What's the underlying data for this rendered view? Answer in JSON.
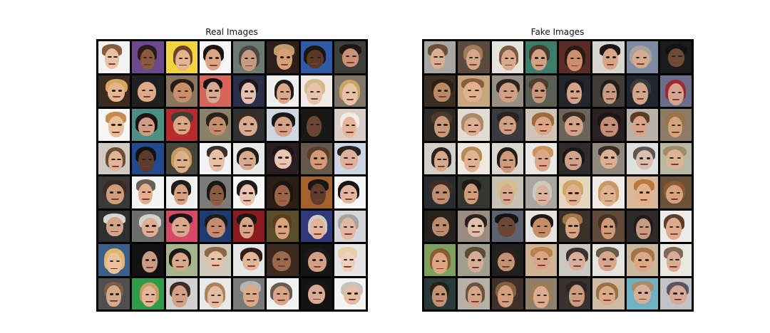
{
  "panels": [
    {
      "key": "real",
      "title": "Real Images",
      "tiles": [
        {
          "bg": "#f3f3f3",
          "skin": "#e7c2a4",
          "hair": "#8a5b3a"
        },
        {
          "bg": "#6a4a8d",
          "skin": "#8b5a3e",
          "hair": "#2b1b16"
        },
        {
          "bg": "#f1d43f",
          "skin": "#e4b48f",
          "hair": "#6f4328"
        },
        {
          "bg": "#f6f6f6",
          "skin": "#d9a585",
          "hair": "#1b1512"
        },
        {
          "bg": "#6c7a72",
          "skin": "#c79b80",
          "hair": "#4b4742"
        },
        {
          "bg": "#2d201b",
          "skin": "#d7a076",
          "hair": "#bf9d6d"
        },
        {
          "bg": "#2f5aa8",
          "skin": "#5a3827",
          "hair": "#1b1614"
        },
        {
          "bg": "#3d4038",
          "skin": "#c99276",
          "hair": "#1d1716"
        },
        {
          "bg": "#3a2a1f",
          "skin": "#e4b590",
          "hair": "#d7a65f"
        },
        {
          "bg": "#202020",
          "skin": "#dcaa86",
          "hair": "#1d1d24"
        },
        {
          "bg": "#8a7560",
          "skin": "#c88f6b",
          "hair": "#2b1d16"
        },
        {
          "bg": "#d6665c",
          "skin": "#d4aa93",
          "hair": "#171313"
        },
        {
          "bg": "#2a2e46",
          "skin": "#e2bfb0",
          "hair": "#1a151a"
        },
        {
          "bg": "#f0f0f0",
          "skin": "#dca88a",
          "hair": "#231b18"
        },
        {
          "bg": "#f0ece5",
          "skin": "#e6c4ac",
          "hair": "#d5b98a"
        },
        {
          "bg": "#80776a",
          "skin": "#e7c2a7",
          "hair": "#c8a469"
        },
        {
          "bg": "#f7f7f7",
          "skin": "#e9c09a",
          "hair": "#c48c52"
        },
        {
          "bg": "#4c8f83",
          "skin": "#d09c82",
          "hair": "#1c1414"
        },
        {
          "bg": "#b52c2c",
          "skin": "#d9a686",
          "hair": "#433a36"
        },
        {
          "bg": "#8b8068",
          "skin": "#c28e6c",
          "hair": "#2b201a"
        },
        {
          "bg": "#2f3131",
          "skin": "#d7ab90",
          "hair": "#3a2c22"
        },
        {
          "bg": "#cfd8e0",
          "skin": "#d3a289",
          "hair": "#1b1718"
        },
        {
          "bg": "#171717",
          "skin": "#6b4634",
          "hair": "#1c1512"
        },
        {
          "bg": "#d9cfc8",
          "skin": "#e3b69d",
          "hair": "#f0ebe4"
        },
        {
          "bg": "#cfcbc4",
          "skin": "#e0b598",
          "hair": "#6b4d35"
        },
        {
          "bg": "#224a8e",
          "skin": "#5c3b2c",
          "hair": "#111111"
        },
        {
          "bg": "#47443c",
          "skin": "#dcb08d",
          "hair": "#c49a5d"
        },
        {
          "bg": "#f2f2f2",
          "skin": "#e6c1a8",
          "hair": "#3a2e28"
        },
        {
          "bg": "#e9e9e9",
          "skin": "#d7a98e",
          "hair": "#1d1a1a"
        },
        {
          "bg": "#2a1e21",
          "skin": "#e8c6b2",
          "hair": "#1a1418"
        },
        {
          "bg": "#66574b",
          "skin": "#d29a76",
          "hair": "#5a3c28"
        },
        {
          "bg": "#cad6e6",
          "skin": "#deb29a",
          "hair": "#2a2220"
        },
        {
          "bg": "#3a3838",
          "skin": "#cf9d7e",
          "hair": "#3b2b22"
        },
        {
          "bg": "#f4f4f4",
          "skin": "#e2b08f",
          "hair": "#6a5f58"
        },
        {
          "bg": "#f0f0f0",
          "skin": "#d4a383",
          "hair": "#1f1b19"
        },
        {
          "bg": "#7b7c78",
          "skin": "#8c5c43",
          "hair": "#1b1513"
        },
        {
          "bg": "#f7f7f7",
          "skin": "#e7c4b1",
          "hair": "#1d1819"
        },
        {
          "bg": "#2c1d16",
          "skin": "#9a6547",
          "hair": "#1d1512"
        },
        {
          "bg": "#a2612e",
          "skin": "#5f3c2b",
          "hair": "#1b1613"
        },
        {
          "bg": "#f6f6f6",
          "skin": "#e2b7a0",
          "hair": "#181415"
        },
        {
          "bg": "#2f2f2f",
          "skin": "#d2a488",
          "hair": "#d8d6d2"
        },
        {
          "bg": "#6c6c6c",
          "skin": "#ddae93",
          "hair": "#d3d1cd"
        },
        {
          "bg": "#d34966",
          "skin": "#d9a78c",
          "hair": "#1a1416"
        },
        {
          "bg": "#1d3b6f",
          "skin": "#c48e6e",
          "hair": "#1e1a19"
        },
        {
          "bg": "#8b1a1e",
          "skin": "#d6a586",
          "hair": "#1a1717"
        },
        {
          "bg": "#5a4d2a",
          "skin": "#d8a37c",
          "hair": "#5a3e22"
        },
        {
          "bg": "#2e3a7a",
          "skin": "#e2b49c",
          "hair": "#cfc9c1"
        },
        {
          "bg": "#d4d6da",
          "skin": "#e1b8a1",
          "hair": "#a7a39d"
        },
        {
          "bg": "#3b5f86",
          "skin": "#e7c09e",
          "hair": "#e2b56a"
        },
        {
          "bg": "#111111",
          "skin": "#c79b84",
          "hair": "#141014"
        },
        {
          "bg": "#a5b58c",
          "skin": "#d7a88a",
          "hair": "#1d1a16"
        },
        {
          "bg": "#cfc8bd",
          "skin": "#e6c2a7",
          "hair": "#8b6848"
        },
        {
          "bg": "#e6e6e6",
          "skin": "#e3b597",
          "hair": "#2e1e16"
        },
        {
          "bg": "#3a2a20",
          "skin": "#9a6a4c",
          "hair": "#3e281b"
        },
        {
          "bg": "#151515",
          "skin": "#d0a187",
          "hair": "#1e1917"
        },
        {
          "bg": "#e5e5e5",
          "skin": "#efcfbc",
          "hair": "#e6cfa5"
        },
        {
          "bg": "#4f4f4f",
          "skin": "#d5a889",
          "hair": "#7d5d42"
        },
        {
          "bg": "#2f9a4a",
          "skin": "#e3b696",
          "hair": "#c99c66"
        },
        {
          "bg": "#d1d1d1",
          "skin": "#d2a187",
          "hair": "#3a2d25"
        },
        {
          "bg": "#e9e9e9",
          "skin": "#e4bda5",
          "hair": "#ad8459"
        },
        {
          "bg": "#7a7a7a",
          "skin": "#dba889",
          "hair": "#b9b3ad"
        },
        {
          "bg": "#f1f1f1",
          "skin": "#d8a587",
          "hair": "#6a5b52"
        },
        {
          "bg": "#121212",
          "skin": "#d9aa94",
          "hair": "#1a1514"
        },
        {
          "bg": "#f3f3f3",
          "skin": "#e4bda6",
          "hair": "#c8c2ba"
        }
      ]
    },
    {
      "key": "fake",
      "title": "Fake Images",
      "tiles": [
        {
          "bg": "#a9a7a2",
          "skin": "#d9b096",
          "hair": "#6b4f3a"
        },
        {
          "bg": "#5b4a3e",
          "skin": "#d4a688",
          "hair": "#a07c5b"
        },
        {
          "bg": "#e6e2dc",
          "skin": "#d9a98b",
          "hair": "#7a5a40"
        },
        {
          "bg": "#3c7d6b",
          "skin": "#d3a084",
          "hair": "#49382c"
        },
        {
          "bg": "#5b2b25",
          "skin": "#c98f6f",
          "hair": "#2a1a16"
        },
        {
          "bg": "#d8d5d1",
          "skin": "#d9a588",
          "hair": "#1c1616"
        },
        {
          "bg": "#7d8aa1",
          "skin": "#d6a991",
          "hair": "#a9a29a"
        },
        {
          "bg": "#1b1b1b",
          "skin": "#6e4a38",
          "hair": "#141111"
        },
        {
          "bg": "#3a2e22",
          "skin": "#b88a66",
          "hair": "#2c2016"
        },
        {
          "bg": "#c7a780",
          "skin": "#e1b190",
          "hair": "#8a5e3c"
        },
        {
          "bg": "#9a8f85",
          "skin": "#cfa084",
          "hair": "#2b2320"
        },
        {
          "bg": "#5a5f54",
          "skin": "#c69879",
          "hair": "#4f3d30"
        },
        {
          "bg": "#24262b",
          "skin": "#d2a489",
          "hair": "#1b1718"
        },
        {
          "bg": "#3f3c38",
          "skin": "#c49a80",
          "hair": "#211c19"
        },
        {
          "bg": "#1f2730",
          "skin": "#d3a68c",
          "hair": "#3a3a3a"
        },
        {
          "bg": "#6b6e8a",
          "skin": "#d7a48d",
          "hair": "#9c2a30"
        },
        {
          "bg": "#2f2c27",
          "skin": "#c89a7a",
          "hair": "#4a3a2c"
        },
        {
          "bg": "#e2dbd2",
          "skin": "#dcae93",
          "hair": "#aa8a6a"
        },
        {
          "bg": "#3a3a3d",
          "skin": "#cf9f84",
          "hair": "#2b2322"
        },
        {
          "bg": "#cfc4b5",
          "skin": "#dba784",
          "hair": "#9b6a3f"
        },
        {
          "bg": "#6b6559",
          "skin": "#d2a386",
          "hair": "#3a2f27"
        },
        {
          "bg": "#2a2021",
          "skin": "#c48e76",
          "hair": "#1d1517"
        },
        {
          "bg": "#b8b2a9",
          "skin": "#d7a488",
          "hair": "#5a3c29"
        },
        {
          "bg": "#8c7b66",
          "skin": "#d5a47f",
          "hair": "#9b7444"
        },
        {
          "bg": "#d3d0cb",
          "skin": "#d9a98c",
          "hair": "#2a221f"
        },
        {
          "bg": "#f0e9df",
          "skin": "#e0b493",
          "hair": "#b68b58"
        },
        {
          "bg": "#dad6d0",
          "skin": "#cf9a79",
          "hair": "#211b18"
        },
        {
          "bg": "#eae8e4",
          "skin": "#dba98a",
          "hair": "#c99461"
        },
        {
          "bg": "#2f2d2b",
          "skin": "#cfa38a",
          "hair": "#1a1616"
        },
        {
          "bg": "#8f887c",
          "skin": "#dcae93",
          "hair": "#3a2d25"
        },
        {
          "bg": "#dfe1dd",
          "skin": "#d9c0b1",
          "hair": "#5a5652"
        },
        {
          "bg": "#b9b8a5",
          "skin": "#dab494",
          "hair": "#a18a68"
        },
        {
          "bg": "#2a2d2f",
          "skin": "#bf8e6f",
          "hair": "#3b2d23"
        },
        {
          "bg": "#33372f",
          "skin": "#cf9d7c",
          "hair": "#1d1a16"
        },
        {
          "bg": "#c7c1b6",
          "skin": "#d7a98d",
          "hair": "#d6bd8c"
        },
        {
          "bg": "#aaa59e",
          "skin": "#dcb39d",
          "hair": "#cfc8bf"
        },
        {
          "bg": "#e4d6bf",
          "skin": "#e0b18c",
          "hair": "#d0a567"
        },
        {
          "bg": "#f0ebe4",
          "skin": "#dfb290",
          "hair": "#c99a63"
        },
        {
          "bg": "#d9b89a",
          "skin": "#e3b28c",
          "hair": "#b8783f"
        },
        {
          "bg": "#6b5039",
          "skin": "#d7a27e",
          "hair": "#8b5a34"
        },
        {
          "bg": "#24221f",
          "skin": "#b98c6e",
          "hair": "#2b2119"
        },
        {
          "bg": "#9a8c80",
          "skin": "#e0c0ad",
          "hair": "#2a211d"
        },
        {
          "bg": "#5c6270",
          "skin": "#6a4634",
          "hair": "#171314"
        },
        {
          "bg": "#e7e3dd",
          "skin": "#c68d6a",
          "hair": "#1d1816"
        },
        {
          "bg": "#3a3128",
          "skin": "#d7a582",
          "hair": "#a07744"
        },
        {
          "bg": "#5f4a3a",
          "skin": "#cf9a78",
          "hair": "#4a3223"
        },
        {
          "bg": "#2d2c2b",
          "skin": "#c69b80",
          "hair": "#1e1b1a"
        },
        {
          "bg": "#ecebe8",
          "skin": "#dcab8d",
          "hair": "#5a3d2a"
        },
        {
          "bg": "#7ea05e",
          "skin": "#dca683",
          "hair": "#8a5b36"
        },
        {
          "bg": "#a19f8e",
          "skin": "#d5ad95",
          "hair": "#5a4a3a"
        },
        {
          "bg": "#20201e",
          "skin": "#c39173",
          "hair": "#2b211a"
        },
        {
          "bg": "#d0b295",
          "skin": "#dba685",
          "hair": "#b6824f"
        },
        {
          "bg": "#cbc8c2",
          "skin": "#d8b09a",
          "hair": "#3a3230"
        },
        {
          "bg": "#e6e4df",
          "skin": "#d6a78a",
          "hair": "#6a5a4e"
        },
        {
          "bg": "#c9b89e",
          "skin": "#dba985",
          "hair": "#a37446"
        },
        {
          "bg": "#ebe8e2",
          "skin": "#d8ad94",
          "hair": "#7e6a58"
        },
        {
          "bg": "#2a3a38",
          "skin": "#c29274",
          "hair": "#24201c"
        },
        {
          "bg": "#b7b0a6",
          "skin": "#d3a487",
          "hair": "#6a523e"
        },
        {
          "bg": "#3f3129",
          "skin": "#d2a07e",
          "hair": "#83603f"
        },
        {
          "bg": "#8f7f6a",
          "skin": "#dcad90",
          "hair": "#a17c53"
        },
        {
          "bg": "#38312e",
          "skin": "#c99b7f",
          "hair": "#2d2521"
        },
        {
          "bg": "#cdbba5",
          "skin": "#dbab88",
          "hair": "#9a7047"
        },
        {
          "bg": "#6fb0c2",
          "skin": "#d9ae98",
          "hair": "#a88c6b"
        },
        {
          "bg": "#c3c3c7",
          "skin": "#d6aa97",
          "hair": "#5b5561"
        }
      ]
    }
  ]
}
